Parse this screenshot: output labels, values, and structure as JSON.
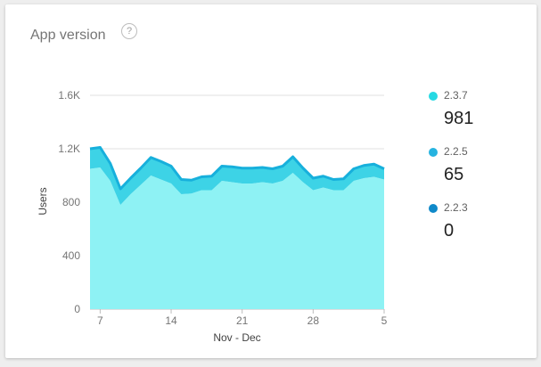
{
  "card": {
    "title": "App version",
    "help_glyph": "?"
  },
  "legend": [
    {
      "name": "2.3.7",
      "value": "981",
      "color": "#26d9e3"
    },
    {
      "name": "2.2.5",
      "value": "65",
      "color": "#26b3e0"
    },
    {
      "name": "2.2.3",
      "value": "0",
      "color": "#0f89c9"
    }
  ],
  "chart_data": {
    "type": "area",
    "stacked": true,
    "title": "",
    "xlabel": "Nov - Dec",
    "ylabel": "Users",
    "ylim": [
      0,
      1600
    ],
    "yticks": [
      0,
      400,
      800,
      1200,
      1600
    ],
    "ytick_labels": [
      "0",
      "400",
      "800",
      "1.2K",
      "1.6K"
    ],
    "xticks": [
      {
        "index": 1,
        "label": "7"
      },
      {
        "index": 8,
        "label": "14"
      },
      {
        "index": 15,
        "label": "21"
      },
      {
        "index": 22,
        "label": "28"
      },
      {
        "index": 29,
        "label": "5"
      }
    ],
    "grid": true,
    "x": [
      6,
      7,
      8,
      9,
      10,
      11,
      12,
      13,
      14,
      15,
      16,
      17,
      18,
      19,
      20,
      21,
      22,
      23,
      24,
      25,
      26,
      27,
      28,
      29,
      30,
      1,
      2,
      3,
      4,
      5
    ],
    "series": [
      {
        "name": "2.3.7",
        "color": "#8ef2f4",
        "values": [
          1050,
          1060,
          960,
          780,
          860,
          930,
          1000,
          970,
          940,
          860,
          865,
          890,
          890,
          960,
          950,
          940,
          940,
          950,
          940,
          960,
          1020,
          950,
          890,
          910,
          890,
          890,
          960,
          980,
          990,
          970
        ]
      },
      {
        "name": "2.2.5",
        "color": "#3dd3e6",
        "values": [
          150,
          150,
          130,
          120,
          120,
          125,
          135,
          135,
          130,
          110,
          100,
          100,
          105,
          110,
          115,
          115,
          115,
          110,
          110,
          110,
          120,
          105,
          90,
          85,
          80,
          85,
          90,
          95,
          95,
          80
        ]
      },
      {
        "name": "2.2.3",
        "color": "#1aa9dc",
        "values": [
          0,
          0,
          0,
          0,
          0,
          0,
          0,
          0,
          0,
          0,
          0,
          0,
          0,
          0,
          0,
          0,
          0,
          0,
          0,
          0,
          0,
          0,
          0,
          0,
          0,
          0,
          0,
          0,
          0,
          0
        ]
      }
    ]
  }
}
